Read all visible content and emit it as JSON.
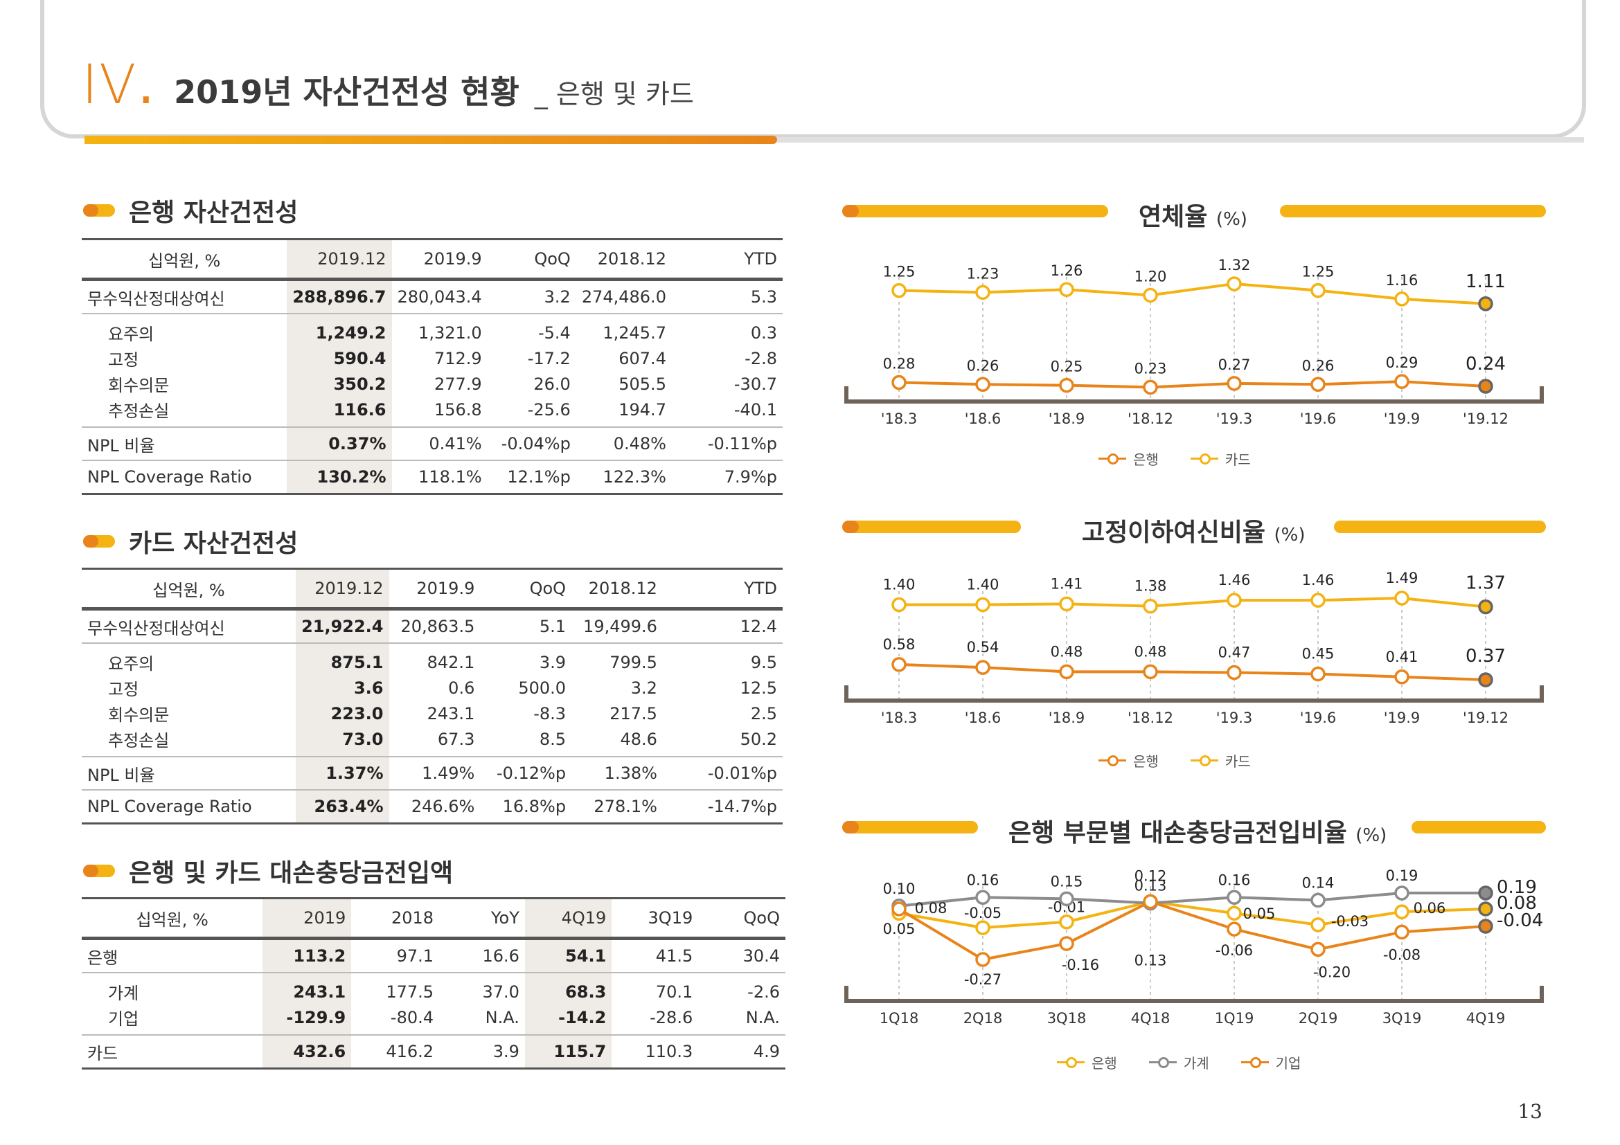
{
  "header": {
    "roman": "IV",
    "title": "2019년 자산건전성 현황",
    "subtitle": "_ 은행 및 카드"
  },
  "bank_table": {
    "title": "은행 자산건전성",
    "headers": [
      "십억원, %",
      "2019.12",
      "2019.9",
      "QoQ",
      "2018.12",
      "YTD"
    ],
    "rows": [
      [
        "무수익산정대상여신",
        "288,896.7",
        "280,043.4",
        "3.2",
        "274,486.0",
        "5.3"
      ],
      [
        "요주의",
        "1,249.2",
        "1,321.0",
        "-5.4",
        "1,245.7",
        "0.3"
      ],
      [
        "고정",
        "590.4",
        "712.9",
        "-17.2",
        "607.4",
        "-2.8"
      ],
      [
        "회수의문",
        "350.2",
        "277.9",
        "26.0",
        "505.5",
        "-30.7"
      ],
      [
        "추정손실",
        "116.6",
        "156.8",
        "-25.6",
        "194.7",
        "-40.1"
      ],
      [
        "NPL 비율",
        "0.37%",
        "0.41%",
        "-0.04%p",
        "0.48%",
        "-0.11%p"
      ],
      [
        "NPL Coverage Ratio",
        "130.2%",
        "118.1%",
        "12.1%p",
        "122.3%",
        "7.9%p"
      ]
    ]
  },
  "card_table": {
    "title": "카드 자산건전성",
    "headers": [
      "십억원, %",
      "2019.12",
      "2019.9",
      "QoQ",
      "2018.12",
      "YTD"
    ],
    "rows": [
      [
        "무수익산정대상여신",
        "21,922.4",
        "20,863.5",
        "5.1",
        "19,499.6",
        "12.4"
      ],
      [
        "요주의",
        "875.1",
        "842.1",
        "3.9",
        "799.5",
        "9.5"
      ],
      [
        "고정",
        "3.6",
        "0.6",
        "500.0",
        "3.2",
        "12.5"
      ],
      [
        "회수의문",
        "223.0",
        "243.1",
        "-8.3",
        "217.5",
        "2.5"
      ],
      [
        "추정손실",
        "73.0",
        "67.3",
        "8.5",
        "48.6",
        "50.2"
      ],
      [
        "NPL 비율",
        "1.37%",
        "1.49%",
        "-0.12%p",
        "1.38%",
        "-0.01%p"
      ],
      [
        "NPL Coverage Ratio",
        "263.4%",
        "246.6%",
        "16.8%p",
        "278.1%",
        "-14.7%p"
      ]
    ]
  },
  "provision_table": {
    "title": "은행 및 카드 대손충당금전입액",
    "headers": [
      "십억원, %",
      "2019",
      "2018",
      "YoY",
      "4Q19",
      "3Q19",
      "QoQ"
    ],
    "rows": [
      [
        "은행",
        "113.2",
        "97.1",
        "16.6",
        "54.1",
        "41.5",
        "30.4"
      ],
      [
        "가계",
        "243.1",
        "177.5",
        "37.0",
        "68.3",
        "70.1",
        "-2.6"
      ],
      [
        "기업",
        "-129.9",
        "-80.4",
        "N.A.",
        "-14.2",
        "-28.6",
        "N.A."
      ],
      [
        "카드",
        "432.6",
        "416.2",
        "3.9",
        "115.7",
        "110.3",
        "4.9"
      ]
    ]
  },
  "colors": {
    "orange": "#e8841a",
    "yellow": "#f4b312",
    "gray": "#8c8c8c",
    "axis": "#6e6259"
  },
  "chart_data": [
    {
      "type": "line",
      "title": "연체율",
      "unit": "(%)",
      "categories": [
        "'18.3",
        "'18.6",
        "'18.9",
        "'18.12",
        "'19.3",
        "'19.6",
        "'19.9",
        "'19.12"
      ],
      "series": [
        {
          "name": "은행",
          "color": "#e8841a",
          "values": [
            0.28,
            0.26,
            0.25,
            0.23,
            0.27,
            0.26,
            0.29,
            0.24
          ],
          "labels": [
            "0.28",
            "0.26",
            "0.25",
            "0.23",
            "0.27",
            "0.26",
            "0.29",
            "0.24"
          ]
        },
        {
          "name": "카드",
          "color": "#f4b312",
          "values": [
            1.25,
            1.23,
            1.26,
            1.2,
            1.32,
            1.25,
            1.16,
            1.11
          ],
          "labels": [
            "1.25",
            "1.23",
            "1.26",
            "1.20",
            "1.32",
            "1.25",
            "1.16",
            "1.11"
          ]
        }
      ]
    },
    {
      "type": "line",
      "title": "고정이하여신비율",
      "unit": "(%)",
      "categories": [
        "'18.3",
        "'18.6",
        "'18.9",
        "'18.12",
        "'19.3",
        "'19.6",
        "'19.9",
        "'19.12"
      ],
      "series": [
        {
          "name": "은행",
          "color": "#e8841a",
          "values": [
            0.58,
            0.54,
            0.48,
            0.48,
            0.47,
            0.45,
            0.41,
            0.37
          ],
          "labels": [
            "0.58",
            "0.54",
            "0.48",
            "0.48",
            "0.47",
            "0.45",
            "0.41",
            "0.37"
          ]
        },
        {
          "name": "카드",
          "color": "#f4b312",
          "values": [
            1.4,
            1.4,
            1.41,
            1.38,
            1.46,
            1.46,
            1.49,
            1.37
          ],
          "labels": [
            "1.40",
            "1.40",
            "1.41",
            "1.38",
            "1.46",
            "1.46",
            "1.49",
            "1.37"
          ]
        }
      ]
    },
    {
      "type": "line",
      "title": "은행 부문별 대손충당금전입비율",
      "unit": "(%)",
      "categories": [
        "1Q18",
        "2Q18",
        "3Q18",
        "4Q18",
        "1Q19",
        "2Q19",
        "3Q19",
        "4Q19"
      ],
      "series": [
        {
          "name": "은행",
          "color": "#f4b312",
          "values": [
            0.05,
            -0.05,
            -0.01,
            0.13,
            0.05,
            -0.03,
            0.06,
            0.08
          ],
          "labels": [
            "0.05",
            "-0.05",
            "-0.01",
            "0.13",
            "0.05",
            "-0.03",
            "0.06",
            "0.08"
          ]
        },
        {
          "name": "가계",
          "color": "#8c8c8c",
          "values": [
            0.1,
            0.16,
            0.15,
            0.12,
            0.16,
            0.14,
            0.19,
            0.19
          ],
          "labels": [
            "0.10",
            "0.16",
            "0.15",
            "0.12",
            "0.16",
            "0.14",
            "0.19",
            "0.19"
          ]
        },
        {
          "name": "기업",
          "color": "#e8841a",
          "values": [
            0.08,
            -0.27,
            -0.16,
            0.13,
            -0.06,
            -0.2,
            -0.08,
            -0.04
          ],
          "labels": [
            "0.08",
            "-0.27",
            "-0.16",
            "0.13",
            "-0.06",
            "-0.20",
            "-0.08",
            "-0.04"
          ]
        }
      ]
    }
  ],
  "page_number": "13"
}
